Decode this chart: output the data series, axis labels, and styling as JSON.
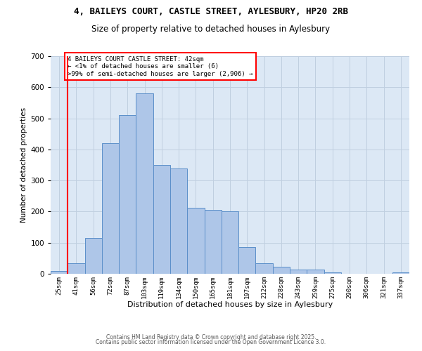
{
  "title_line1": "4, BAILEYS COURT, CASTLE STREET, AYLESBURY, HP20 2RB",
  "title_line2": "Size of property relative to detached houses in Aylesbury",
  "xlabel": "Distribution of detached houses by size in Aylesbury",
  "ylabel": "Number of detached properties",
  "bar_labels": [
    "25sqm",
    "41sqm",
    "56sqm",
    "72sqm",
    "87sqm",
    "103sqm",
    "119sqm",
    "134sqm",
    "150sqm",
    "165sqm",
    "181sqm",
    "197sqm",
    "212sqm",
    "228sqm",
    "243sqm",
    "259sqm",
    "275sqm",
    "290sqm",
    "306sqm",
    "321sqm",
    "337sqm"
  ],
  "bar_values": [
    8,
    35,
    115,
    420,
    510,
    580,
    350,
    338,
    213,
    205,
    200,
    85,
    35,
    22,
    13,
    14,
    5,
    0,
    1,
    0,
    4
  ],
  "bar_color": "#aec6e8",
  "bar_edgecolor": "#5b8fc9",
  "bg_color": "#dce8f5",
  "annotation_text": "4 BAILEYS COURT CASTLE STREET: 42sqm\n← <1% of detached houses are smaller (6)\n>99% of semi-detached houses are larger (2,906) →",
  "red_line_bar_index": 1,
  "ylim": [
    0,
    700
  ],
  "yticks": [
    0,
    100,
    200,
    300,
    400,
    500,
    600,
    700
  ],
  "footer_line1": "Contains HM Land Registry data © Crown copyright and database right 2025.",
  "footer_line2": "Contains public sector information licensed under the Open Government Licence 3.0.",
  "grid_color": "#c0cfe0",
  "title_fontsize": 9,
  "subtitle_fontsize": 8.5
}
